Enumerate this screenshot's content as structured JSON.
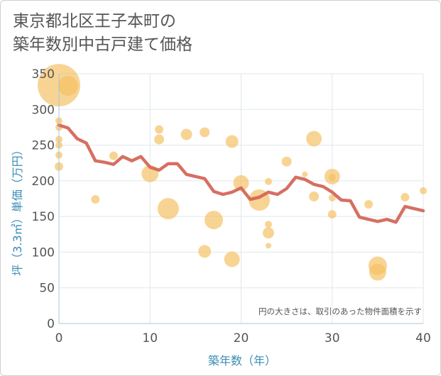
{
  "chart_data": {
    "type": "scatter",
    "title_line1": "東京都北区王子本町の",
    "title_line2": "築年数別中古戸建て価格",
    "xlabel": "築年数（年）",
    "ylabel": "坪（3.3㎡）単価（万円）",
    "xlim": [
      0,
      40
    ],
    "ylim": [
      0,
      350
    ],
    "x_ticks": [
      "0",
      "10",
      "20",
      "30",
      "40"
    ],
    "y_ticks": [
      "0",
      "50",
      "100",
      "150",
      "200",
      "250",
      "300",
      "350"
    ],
    "note": "円の大きさは、取引のあった物件面積を示す",
    "colors": {
      "bubble": "#f5c062",
      "line": "#d4675a",
      "grid": "#dfe7ec",
      "axis": "#a8c8d8"
    },
    "series": [
      {
        "name": "bubbles",
        "points": [
          {
            "x": 0,
            "y": 334,
            "size": 30
          },
          {
            "x": 1,
            "y": 333,
            "size": 14
          },
          {
            "x": 0,
            "y": 284,
            "size": 5
          },
          {
            "x": 0,
            "y": 275,
            "size": 5
          },
          {
            "x": 0,
            "y": 258,
            "size": 5
          },
          {
            "x": 0,
            "y": 250,
            "size": 5
          },
          {
            "x": 0,
            "y": 236,
            "size": 5
          },
          {
            "x": 0,
            "y": 220,
            "size": 6
          },
          {
            "x": 4,
            "y": 174,
            "size": 6
          },
          {
            "x": 6,
            "y": 235,
            "size": 6
          },
          {
            "x": 10,
            "y": 210,
            "size": 12
          },
          {
            "x": 11,
            "y": 272,
            "size": 6
          },
          {
            "x": 11,
            "y": 258,
            "size": 7
          },
          {
            "x": 12,
            "y": 161,
            "size": 15
          },
          {
            "x": 14,
            "y": 265,
            "size": 8
          },
          {
            "x": 16,
            "y": 268,
            "size": 7
          },
          {
            "x": 16,
            "y": 101,
            "size": 9
          },
          {
            "x": 17,
            "y": 145,
            "size": 13
          },
          {
            "x": 19,
            "y": 255,
            "size": 9
          },
          {
            "x": 19,
            "y": 90,
            "size": 11
          },
          {
            "x": 20,
            "y": 197,
            "size": 11
          },
          {
            "x": 22,
            "y": 173,
            "size": 15
          },
          {
            "x": 23,
            "y": 199,
            "size": 5
          },
          {
            "x": 23,
            "y": 139,
            "size": 5
          },
          {
            "x": 23,
            "y": 127,
            "size": 8
          },
          {
            "x": 23,
            "y": 109,
            "size": 4
          },
          {
            "x": 25,
            "y": 227,
            "size": 7
          },
          {
            "x": 27,
            "y": 209,
            "size": 4
          },
          {
            "x": 28,
            "y": 259,
            "size": 11
          },
          {
            "x": 28,
            "y": 178,
            "size": 7
          },
          {
            "x": 30,
            "y": 206,
            "size": 11
          },
          {
            "x": 30,
            "y": 205,
            "size": 5
          },
          {
            "x": 30,
            "y": 176,
            "size": 5
          },
          {
            "x": 30,
            "y": 153,
            "size": 6
          },
          {
            "x": 34,
            "y": 167,
            "size": 6
          },
          {
            "x": 35,
            "y": 81,
            "size": 13
          },
          {
            "x": 35,
            "y": 72,
            "size": 12
          },
          {
            "x": 38,
            "y": 177,
            "size": 6
          },
          {
            "x": 40,
            "y": 186,
            "size": 5
          }
        ]
      },
      {
        "name": "average",
        "x": [
          0,
          1,
          2,
          3,
          4,
          5,
          6,
          7,
          8,
          9,
          10,
          11,
          12,
          13,
          14,
          15,
          16,
          17,
          18,
          19,
          20,
          21,
          22,
          23,
          24,
          25,
          26,
          27,
          28,
          29,
          30,
          31,
          32,
          33,
          34,
          35,
          36,
          37,
          38,
          39,
          40
        ],
        "y": [
          278,
          274,
          259,
          253,
          228,
          226,
          223,
          234,
          228,
          234,
          219,
          215,
          224,
          224,
          209,
          206,
          203,
          185,
          181,
          184,
          190,
          174,
          177,
          184,
          181,
          189,
          205,
          202,
          195,
          192,
          184,
          173,
          172,
          149,
          146,
          143,
          146,
          142,
          164,
          161,
          158
        ]
      }
    ]
  }
}
